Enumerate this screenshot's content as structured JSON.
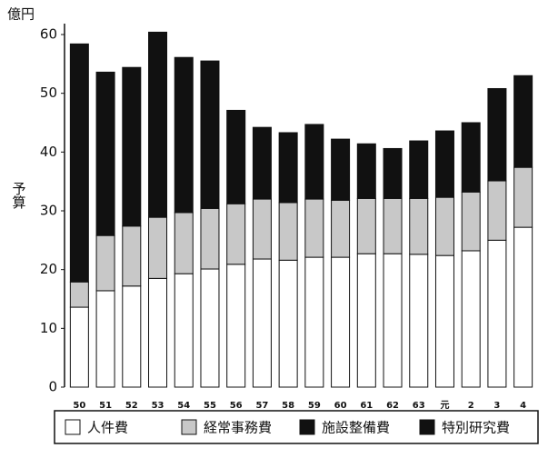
{
  "chart_data": {
    "type": "stacked_bar",
    "y_unit": "億円",
    "y_label": "予算",
    "categories": [
      "50",
      "51",
      "52",
      "53",
      "54",
      "55",
      "56",
      "57",
      "58",
      "59",
      "60",
      "61",
      "62",
      "63",
      "元",
      "2",
      "3",
      "4"
    ],
    "series": [
      {
        "name": "人件費",
        "color": "#ffffff",
        "values": [
          13.6,
          16.4,
          17.2,
          18.5,
          19.3,
          20.1,
          20.9,
          21.8,
          21.6,
          22.1,
          22.1,
          22.7,
          22.7,
          22.6,
          22.4,
          23.2,
          25.0,
          27.2
        ]
      },
      {
        "name": "経常事務費",
        "color": "#c8c8c8",
        "values": [
          4.3,
          9.4,
          10.2,
          10.4,
          10.4,
          10.3,
          10.3,
          10.2,
          9.8,
          9.9,
          9.7,
          9.4,
          9.4,
          9.5,
          9.9,
          10.0,
          10.1,
          10.2
        ]
      },
      {
        "name": "施設整備費",
        "color": "#111111",
        "values": [
          40.5,
          27.8,
          27.0,
          31.5,
          26.4,
          25.1,
          15.9,
          12.2,
          11.9,
          12.7,
          10.4,
          9.3,
          8.5,
          9.8,
          11.3,
          11.8,
          15.7,
          15.6
        ]
      },
      {
        "name": "特別研究費",
        "color": "#111111",
        "values": [
          null,
          null,
          null,
          null,
          null,
          null,
          null,
          null,
          null,
          null,
          null,
          null,
          null,
          null,
          null,
          null,
          null,
          null
        ]
      }
    ],
    "ylim": [
      0,
      60
    ],
    "yticks": [
      0,
      10,
      20,
      30,
      40,
      50,
      60
    ],
    "grid": false
  }
}
